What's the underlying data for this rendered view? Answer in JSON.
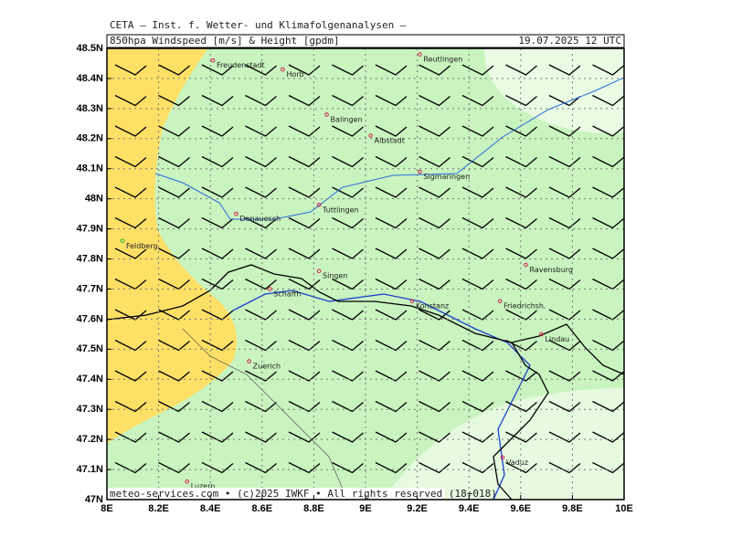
{
  "header": {
    "institute": "CETA — Inst. f. Wetter- und Klimafolgenanalysen —",
    "product": "850hpa Windspeed [m/s] & Height [gpdm]",
    "valid": "19.07.2025 12 UTC"
  },
  "footer": "meteo-services.com • (c)2025 IWKF • All rights reserved (18+018)",
  "map": {
    "xlim": [
      8,
      10
    ],
    "ylim": [
      47,
      48.5
    ],
    "xticks": [
      {
        "value": 8,
        "label": "8E"
      },
      {
        "value": 8.2,
        "label": "8.2E"
      },
      {
        "value": 8.4,
        "label": "8.4E"
      },
      {
        "value": 8.6,
        "label": "8.6E"
      },
      {
        "value": 8.8,
        "label": "8.8E"
      },
      {
        "value": 9,
        "label": "9E"
      },
      {
        "value": 9.2,
        "label": "9.2E"
      },
      {
        "value": 9.4,
        "label": "9.4E"
      },
      {
        "value": 9.6,
        "label": "9.6E"
      },
      {
        "value": 9.8,
        "label": "9.8E"
      },
      {
        "value": 10,
        "label": "10E"
      }
    ],
    "yticks": [
      {
        "value": 47,
        "label": "47N"
      },
      {
        "value": 47.1,
        "label": "47.1N"
      },
      {
        "value": 47.2,
        "label": "47.2N"
      },
      {
        "value": 47.3,
        "label": "47.3N"
      },
      {
        "value": 47.4,
        "label": "47.4N"
      },
      {
        "value": 47.5,
        "label": "47.5N"
      },
      {
        "value": 47.6,
        "label": "47.6N"
      },
      {
        "value": 47.7,
        "label": "47.7N"
      },
      {
        "value": 47.8,
        "label": "47.8N"
      },
      {
        "value": 47.9,
        "label": "47.9N"
      },
      {
        "value": 48,
        "label": "48N"
      },
      {
        "value": 48.1,
        "label": "48.1N"
      },
      {
        "value": 48.2,
        "label": "48.2N"
      },
      {
        "value": 48.3,
        "label": "48.3N"
      },
      {
        "value": 48.4,
        "label": "48.4N"
      },
      {
        "value": 48.5,
        "label": "48.5N"
      }
    ],
    "cities": [
      {
        "name": "Freudenstadt",
        "lon": 8.41,
        "lat": 48.46
      },
      {
        "name": "Horb",
        "lon": 8.68,
        "lat": 48.43
      },
      {
        "name": "Reutlingen",
        "lon": 9.21,
        "lat": 48.48
      },
      {
        "name": "Balingen",
        "lon": 8.85,
        "lat": 48.28
      },
      {
        "name": "Albstadt",
        "lon": 9.02,
        "lat": 48.21
      },
      {
        "name": "Sigmaringen",
        "lon": 9.21,
        "lat": 48.09
      },
      {
        "name": "Tuttlingen",
        "lon": 8.82,
        "lat": 47.98
      },
      {
        "name": "Donauesch",
        "lon": 8.5,
        "lat": 47.95
      },
      {
        "name": "Feldberg",
        "lon": 8.06,
        "lat": 47.86,
        "color": "#22bb22"
      },
      {
        "name": "Singen",
        "lon": 8.82,
        "lat": 47.76
      },
      {
        "name": "Schaffh",
        "lon": 8.63,
        "lat": 47.7
      },
      {
        "name": "Konstanz",
        "lon": 9.18,
        "lat": 47.66
      },
      {
        "name": "Friedrichsh.",
        "lon": 9.52,
        "lat": 47.66
      },
      {
        "name": "Ravensburg",
        "lon": 9.62,
        "lat": 47.78
      },
      {
        "name": "Lindau",
        "lon": 9.68,
        "lat": 47.55
      },
      {
        "name": "Zuerich",
        "lon": 8.55,
        "lat": 47.46
      },
      {
        "name": "Vaduz",
        "lon": 9.53,
        "lat": 47.14
      },
      {
        "name": "Luzern",
        "lon": 8.31,
        "lat": 47.06
      }
    ]
  }
}
